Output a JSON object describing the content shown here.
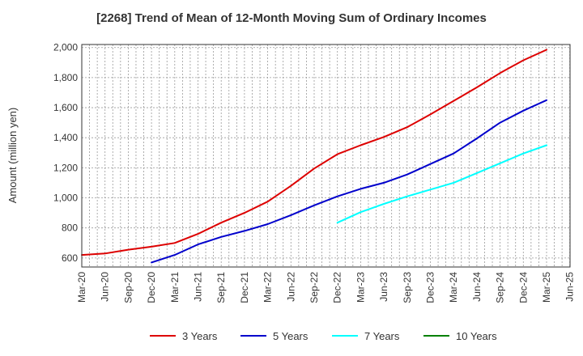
{
  "chart_data": {
    "type": "line",
    "title": "[2268]  Trend of Mean of 12-Month Moving Sum of Ordinary Incomes",
    "xlabel": "",
    "ylabel": "Amount (million yen)",
    "ylim": [
      540,
      2020
    ],
    "yticks": [
      600,
      800,
      1000,
      1200,
      1400,
      1600,
      1800,
      2000
    ],
    "ytick_labels": [
      "600",
      "800",
      "1,000",
      "1,200",
      "1,400",
      "1,600",
      "1,800",
      "2,000"
    ],
    "categories": [
      "Mar-20",
      "Jun-20",
      "Sep-20",
      "Dec-20",
      "Mar-21",
      "Jun-21",
      "Sep-21",
      "Dec-21",
      "Mar-22",
      "Jun-22",
      "Sep-22",
      "Dec-22",
      "Mar-23",
      "Jun-23",
      "Sep-23",
      "Dec-23",
      "Mar-24",
      "Jun-24",
      "Sep-24",
      "Dec-24",
      "Mar-25",
      "Jun-25"
    ],
    "grid": true,
    "legend_position": "bottom",
    "series": [
      {
        "name": "3 Years",
        "color": "#dd0000",
        "values": [
          620,
          630,
          655,
          675,
          700,
          760,
          835,
          900,
          975,
          1080,
          1195,
          1290,
          1350,
          1405,
          1470,
          1555,
          1645,
          1735,
          1830,
          1915,
          1985,
          null
        ]
      },
      {
        "name": "5 Years",
        "color": "#0000cc",
        "values": [
          null,
          null,
          null,
          570,
          620,
          690,
          740,
          780,
          825,
          885,
          950,
          1010,
          1060,
          1100,
          1155,
          1225,
          1295,
          1395,
          1500,
          1580,
          1650,
          null
        ]
      },
      {
        "name": "7 Years",
        "color": "#00ffff",
        "values": [
          null,
          null,
          null,
          null,
          null,
          null,
          null,
          null,
          null,
          null,
          null,
          835,
          905,
          960,
          1010,
          1055,
          1100,
          1165,
          1230,
          1295,
          1350,
          null
        ]
      },
      {
        "name": "10 Years",
        "color": "#008000",
        "values": [
          null,
          null,
          null,
          null,
          null,
          null,
          null,
          null,
          null,
          null,
          null,
          null,
          null,
          null,
          null,
          null,
          null,
          null,
          null,
          null,
          null,
          null
        ]
      }
    ]
  }
}
